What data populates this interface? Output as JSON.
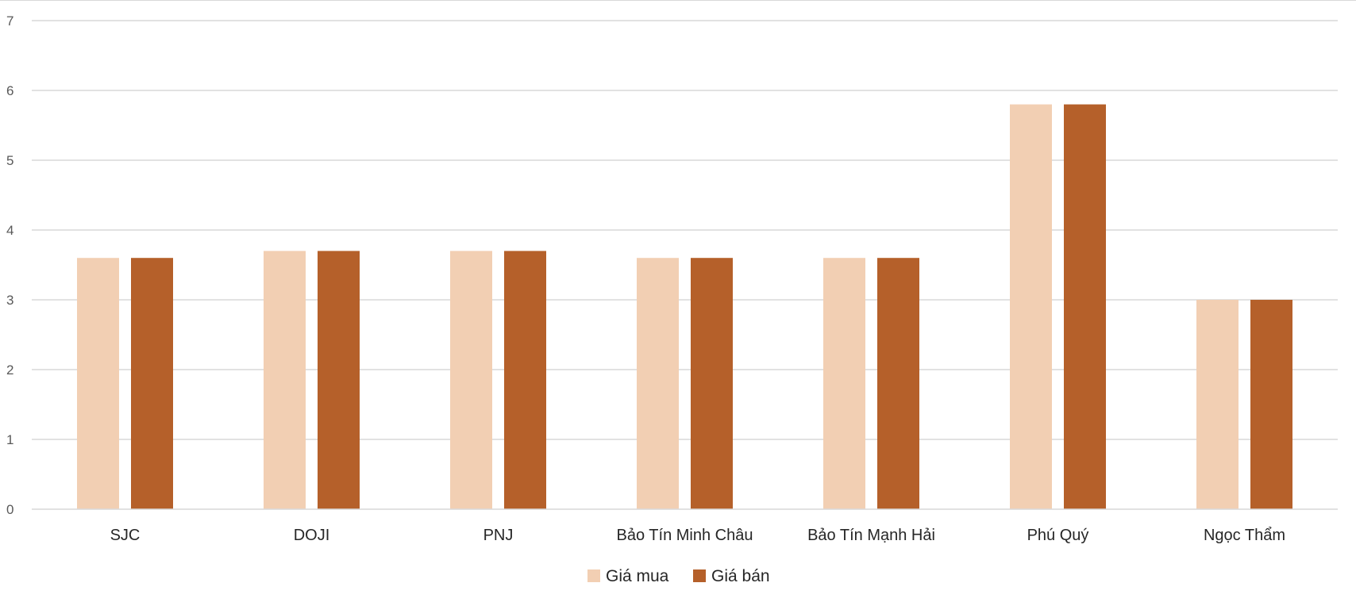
{
  "chart_data": {
    "type": "bar",
    "title": "",
    "xlabel": "",
    "ylabel": "",
    "ylim": [
      0,
      7
    ],
    "yticks": [
      0,
      1,
      2,
      3,
      4,
      5,
      6,
      7
    ],
    "grid": true,
    "legend_position": "bottom",
    "categories": [
      "SJC",
      "DOJI",
      "PNJ",
      "Bảo Tín Minh Châu",
      "Bảo Tín Mạnh Hải",
      "Phú Quý",
      "Ngọc Thẩm"
    ],
    "series": [
      {
        "name": "Giá mua",
        "color": "#F2CFB3",
        "values": [
          3.6,
          3.7,
          3.7,
          3.6,
          3.6,
          5.8,
          3.0
        ]
      },
      {
        "name": "Giá bán",
        "color": "#B5602A",
        "values": [
          3.6,
          3.7,
          3.7,
          3.6,
          3.6,
          5.8,
          3.0
        ]
      }
    ]
  }
}
